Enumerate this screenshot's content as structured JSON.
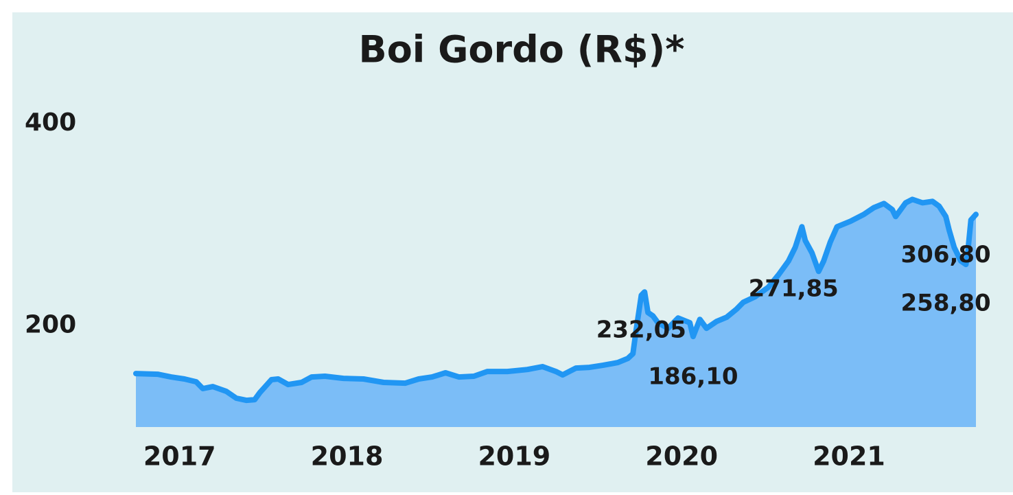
{
  "chart_data": {
    "type": "area",
    "title": "Boi Gordo (R$)*",
    "x": [
      2016.87,
      2017.0,
      2017.08,
      2017.16,
      2017.23,
      2017.27,
      2017.33,
      2017.41,
      2017.47,
      2017.53,
      2017.58,
      2017.61,
      2017.68,
      2017.72,
      2017.78,
      2017.86,
      2017.92,
      2018.0,
      2018.11,
      2018.23,
      2018.35,
      2018.48,
      2018.56,
      2018.64,
      2018.72,
      2018.8,
      2018.89,
      2018.97,
      2019.09,
      2019.21,
      2019.3,
      2019.38,
      2019.42,
      2019.5,
      2019.58,
      2019.66,
      2019.75,
      2019.81,
      2019.84,
      2019.86,
      2019.89,
      2019.91,
      2019.93,
      2019.96,
      2019.99,
      2020.05,
      2020.11,
      2020.18,
      2020.2,
      2020.24,
      2020.28,
      2020.34,
      2020.4,
      2020.46,
      2020.5,
      2020.57,
      2020.65,
      2020.71,
      2020.77,
      2020.81,
      2020.85,
      2020.87,
      2020.91,
      2020.95,
      2020.98,
      2021.02,
      2021.06,
      2021.14,
      2021.22,
      2021.28,
      2021.34,
      2021.39,
      2021.41,
      2021.47,
      2021.51,
      2021.57,
      2021.63,
      2021.67,
      2021.71,
      2021.73,
      2021.76,
      2021.8,
      2021.83,
      2021.84,
      2021.86,
      2021.89
    ],
    "series": [
      {
        "name": "Boi Gordo",
        "color": "#2196f3",
        "fill": "#7bbdf7",
        "values": [
          152.9,
          152.2,
          149.5,
          147.5,
          144.7,
          138.0,
          140.0,
          135.3,
          128.5,
          126.4,
          127.1,
          133.9,
          146.8,
          147.5,
          142.0,
          144.1,
          149.5,
          150.2,
          148.1,
          147.5,
          144.1,
          143.4,
          147.5,
          149.5,
          153.6,
          149.5,
          150.2,
          154.9,
          154.9,
          156.9,
          159.7,
          154.9,
          151.5,
          158.3,
          159.0,
          161.0,
          163.7,
          167.8,
          172.5,
          196.3,
          230.2,
          233.6,
          213.2,
          209.8,
          203.1,
          197.6,
          207.8,
          203.1,
          189.5,
          206.4,
          197.6,
          204.4,
          208.5,
          216.6,
          223.4,
          228.8,
          238.3,
          250.5,
          264.1,
          277.6,
          298.0,
          284.4,
          272.2,
          253.9,
          264.1,
          283.1,
          298.0,
          303.4,
          310.2,
          316.9,
          321.0,
          314.9,
          308.1,
          321.7,
          325.1,
          321.7,
          323.1,
          318.3,
          308.1,
          294.6,
          277.6,
          264.1,
          260.7,
          270.8,
          304.7,
          310.2
        ]
      }
    ],
    "annotations": [
      {
        "text": "232,05",
        "x": 2019.89,
        "y": 194.9
      },
      {
        "text": "186,10",
        "x": 2020.2,
        "y": 148.8
      },
      {
        "text": "271,85",
        "x": 2020.8,
        "y": 235.6
      },
      {
        "text": "306,80",
        "x": 2021.71,
        "y": 269.5
      },
      {
        "text": "258,80",
        "x": 2021.71,
        "y": 221.4
      }
    ],
    "xlim": [
      2016.87,
      2021.89
    ],
    "xticks": [
      2017,
      2018,
      2019,
      2020,
      2021
    ],
    "ylim": [
      100,
      400
    ],
    "yticks": [
      200,
      400
    ],
    "grid": false
  }
}
